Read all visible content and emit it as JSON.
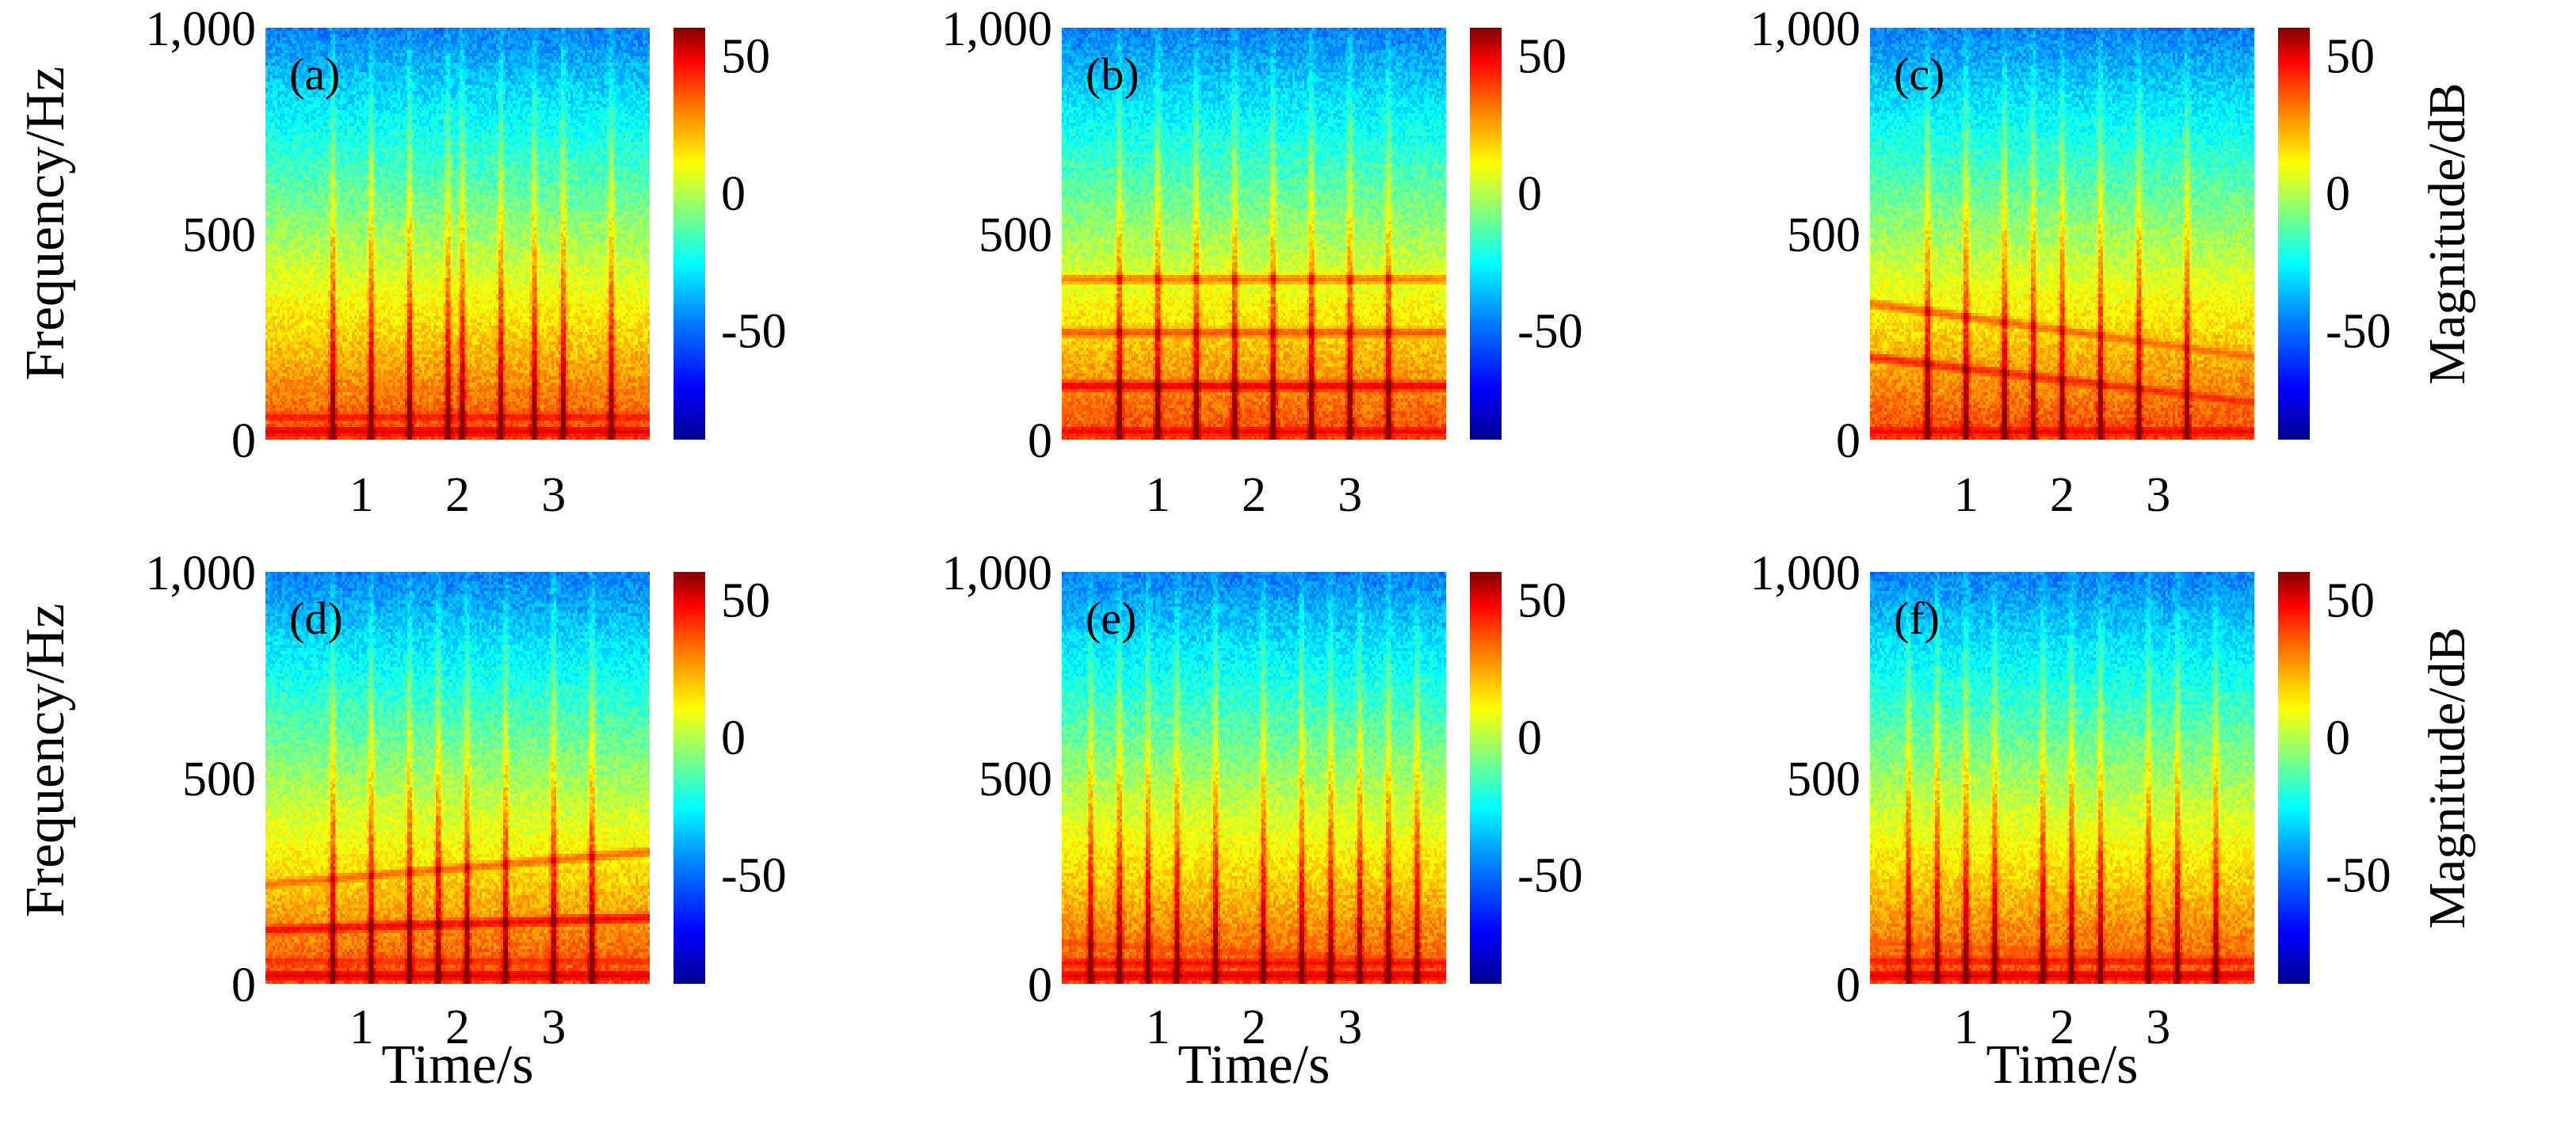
{
  "figure": {
    "y_axis_label": "Frequency/Hz",
    "x_axis_label": "Time/s",
    "colorbar_label": "Magnitude/dB"
  },
  "colors": {
    "colormap": [
      "#00008f",
      "#0000ff",
      "#0080ff",
      "#00ffff",
      "#80ff80",
      "#ffff00",
      "#ff8000",
      "#ff0000",
      "#800000"
    ]
  },
  "chart_data": [
    {
      "type": "heatmap",
      "panel": "a",
      "panel_label": "(a)",
      "x_ticks": [
        1,
        2,
        3
      ],
      "x_tick_labels": [
        "1",
        "2",
        "3"
      ],
      "xlim": [
        0,
        4
      ],
      "y_ticks": [
        0,
        500,
        1000
      ],
      "y_tick_labels": [
        "0",
        "500",
        "1,000"
      ],
      "ylim": [
        0,
        1000
      ],
      "colorbar_ticks": [
        50,
        0,
        -50
      ],
      "colorbar_tick_labels": [
        "50",
        "0",
        "-50"
      ],
      "clim": [
        -90,
        60
      ],
      "ylabel": "Frequency/Hz",
      "xlabel": "",
      "colorbar_label": "",
      "harmonics": [
        {
          "f": 20,
          "db": 45
        },
        {
          "f": 55,
          "db": 38
        },
        {
          "f": 120,
          "db": 22
        }
      ],
      "transients_s": [
        0.7,
        1.1,
        1.5,
        1.9,
        2.05,
        2.45,
        2.8,
        3.1,
        3.6
      ]
    },
    {
      "type": "heatmap",
      "panel": "b",
      "panel_label": "(b)",
      "x_ticks": [
        1,
        2,
        3
      ],
      "x_tick_labels": [
        "1",
        "2",
        "3"
      ],
      "xlim": [
        0,
        4
      ],
      "y_ticks": [
        0,
        500,
        1000
      ],
      "y_tick_labels": [
        "0",
        "500",
        "1,000"
      ],
      "ylim": [
        0,
        1000
      ],
      "colorbar_ticks": [
        50,
        0,
        -50
      ],
      "colorbar_tick_labels": [
        "50",
        "0",
        "-50"
      ],
      "clim": [
        -90,
        60
      ],
      "ylabel": "",
      "xlabel": "",
      "colorbar_label": "",
      "harmonics": [
        {
          "f": 20,
          "db": 42
        },
        {
          "f": 130,
          "db": 42
        },
        {
          "f": 260,
          "db": 28
        },
        {
          "f": 390,
          "db": 22
        }
      ],
      "transients_s": [
        0.6,
        1.0,
        1.4,
        1.8,
        2.2,
        2.6,
        3.0,
        3.4
      ]
    },
    {
      "type": "heatmap",
      "panel": "c",
      "panel_label": "(c)",
      "x_ticks": [
        1,
        2,
        3
      ],
      "x_tick_labels": [
        "1",
        "2",
        "3"
      ],
      "xlim": [
        0,
        4
      ],
      "y_ticks": [
        0,
        500,
        1000
      ],
      "y_tick_labels": [
        "0",
        "500",
        "1,000"
      ],
      "ylim": [
        0,
        1000
      ],
      "colorbar_ticks": [
        50,
        0,
        -50
      ],
      "colorbar_tick_labels": [
        "50",
        "0",
        "-50"
      ],
      "clim": [
        -90,
        60
      ],
      "ylabel": "",
      "xlabel": "",
      "colorbar_label": "Magnitude/dB",
      "harmonics": [
        {
          "f": 20,
          "db": 42
        },
        {
          "f": 200,
          "db": 35,
          "f_end": 90
        },
        {
          "f": 330,
          "db": 25,
          "f_end": 200
        }
      ],
      "transients_s": [
        0.6,
        1.0,
        1.4,
        1.7,
        2.0,
        2.4,
        2.8,
        3.3
      ]
    },
    {
      "type": "heatmap",
      "panel": "d",
      "panel_label": "(d)",
      "x_ticks": [
        1,
        2,
        3
      ],
      "x_tick_labels": [
        "1",
        "2",
        "3"
      ],
      "xlim": [
        0,
        4
      ],
      "y_ticks": [
        0,
        500,
        1000
      ],
      "y_tick_labels": [
        "0",
        "500",
        "1,000"
      ],
      "ylim": [
        0,
        1000
      ],
      "colorbar_ticks": [
        50,
        0,
        -50
      ],
      "colorbar_tick_labels": [
        "50",
        "0",
        "-50"
      ],
      "clim": [
        -90,
        60
      ],
      "ylabel": "Frequency/Hz",
      "xlabel": "Time/s",
      "colorbar_label": "",
      "harmonics": [
        {
          "f": 20,
          "db": 45
        },
        {
          "f": 55,
          "db": 35
        },
        {
          "f": 130,
          "db": 40,
          "f_end": 160
        },
        {
          "f": 240,
          "db": 25,
          "f_end": 320
        }
      ],
      "transients_s": [
        0.7,
        1.1,
        1.5,
        1.8,
        2.1,
        2.5,
        3.0,
        3.4
      ]
    },
    {
      "type": "heatmap",
      "panel": "e",
      "panel_label": "(e)",
      "x_ticks": [
        1,
        2,
        3
      ],
      "x_tick_labels": [
        "1",
        "2",
        "3"
      ],
      "xlim": [
        0,
        4
      ],
      "y_ticks": [
        0,
        500,
        1000
      ],
      "y_tick_labels": [
        "0",
        "500",
        "1,000"
      ],
      "ylim": [
        0,
        1000
      ],
      "colorbar_ticks": [
        50,
        0,
        -50
      ],
      "colorbar_tick_labels": [
        "50",
        "0",
        "-50"
      ],
      "clim": [
        -90,
        60
      ],
      "ylabel": "",
      "xlabel": "Time/s",
      "colorbar_label": "",
      "harmonics": [
        {
          "f": 20,
          "db": 45
        },
        {
          "f": 50,
          "db": 40
        },
        {
          "f": 100,
          "db": 30,
          "f_end": 50
        }
      ],
      "transients_s": [
        0.3,
        0.6,
        0.9,
        1.2,
        1.6,
        2.1,
        2.5,
        2.8,
        3.1,
        3.4,
        3.7
      ]
    },
    {
      "type": "heatmap",
      "panel": "f",
      "panel_label": "(f)",
      "x_ticks": [
        1,
        2,
        3
      ],
      "x_tick_labels": [
        "1",
        "2",
        "3"
      ],
      "xlim": [
        0,
        4
      ],
      "y_ticks": [
        0,
        500,
        1000
      ],
      "y_tick_labels": [
        "0",
        "500",
        "1,000"
      ],
      "ylim": [
        0,
        1000
      ],
      "colorbar_ticks": [
        50,
        0,
        -50
      ],
      "colorbar_tick_labels": [
        "50",
        "0",
        "-50"
      ],
      "clim": [
        -90,
        60
      ],
      "ylabel": "",
      "xlabel": "Time/s",
      "colorbar_label": "Magnitude/dB",
      "harmonics": [
        {
          "f": 20,
          "db": 45
        },
        {
          "f": 55,
          "db": 38
        },
        {
          "f": 100,
          "db": 28,
          "f_end": 60
        }
      ],
      "transients_s": [
        0.4,
        0.7,
        1.0,
        1.3,
        1.8,
        2.1,
        2.4,
        2.9,
        3.2,
        3.6
      ]
    }
  ]
}
